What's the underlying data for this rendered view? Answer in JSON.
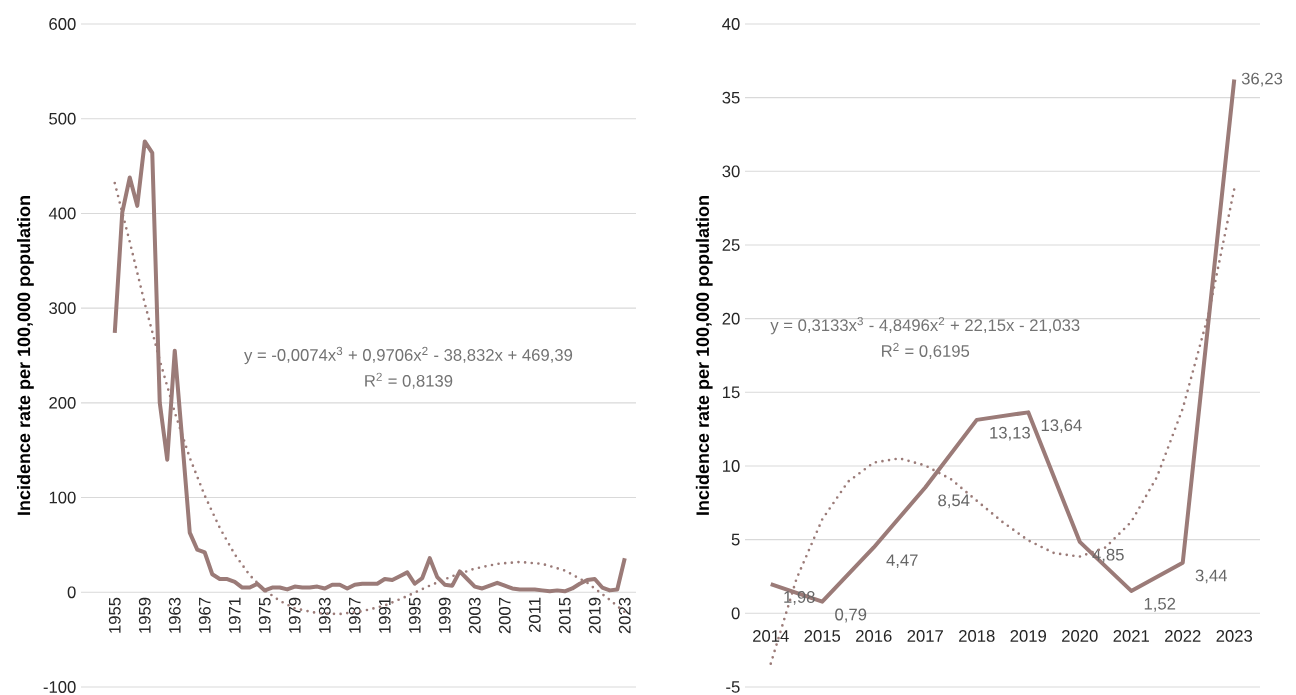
{
  "chart_data": [
    {
      "type": "line",
      "ylabel": "Incidence rate per 100,000 population",
      "x": [
        1955,
        1956,
        1957,
        1958,
        1959,
        1960,
        1961,
        1962,
        1963,
        1964,
        1965,
        1966,
        1967,
        1968,
        1969,
        1970,
        1971,
        1972,
        1973,
        1974,
        1975,
        1976,
        1977,
        1978,
        1979,
        1980,
        1981,
        1982,
        1983,
        1984,
        1985,
        1986,
        1987,
        1988,
        1989,
        1990,
        1991,
        1992,
        1993,
        1994,
        1995,
        1996,
        1997,
        1998,
        1999,
        2000,
        2001,
        2002,
        2003,
        2004,
        2005,
        2006,
        2007,
        2008,
        2009,
        2010,
        2011,
        2012,
        2013,
        2014,
        2015,
        2016,
        2017,
        2018,
        2019,
        2020,
        2021,
        2022,
        2023
      ],
      "series": [
        {
          "color": "#9b7b78",
          "values": [
            274,
            401,
            438,
            408,
            476,
            464,
            200,
            140,
            255,
            160,
            63,
            45,
            42,
            19,
            14,
            14,
            11,
            5,
            5,
            9,
            2,
            5,
            5,
            3,
            6,
            5,
            5,
            6,
            4,
            8,
            8,
            4,
            8,
            9,
            9,
            9,
            14,
            13,
            17,
            21,
            9,
            15,
            36,
            16,
            8,
            7,
            22,
            14,
            6,
            4,
            7,
            10,
            7,
            4,
            3,
            3,
            3,
            2,
            1,
            2,
            1,
            4,
            9,
            13,
            14,
            5,
            2,
            3,
            36
          ]
        },
        {
          "type": "line",
          "line_style": "dotted",
          "color": "#9b7b78",
          "x": [
            1955,
            1957,
            1959,
            1961,
            1963,
            1965,
            1967,
            1969,
            1971,
            1973,
            1975,
            1977,
            1979,
            1982,
            1985,
            1988,
            1991,
            1994,
            1997,
            2000,
            2003,
            2006,
            2009,
            2012,
            2015,
            2018,
            2021,
            2023
          ],
          "values": [
            432,
            370,
            305,
            245,
            190,
            142,
            102,
            68,
            40,
            18,
            2,
            -9,
            -17,
            -22,
            -23,
            -20,
            -14,
            -4,
            7,
            17,
            25,
            30,
            32,
            30,
            23,
            10,
            -8,
            -21
          ]
        }
      ],
      "xlim": [
        1950.5,
        2024.5
      ],
      "xticks": [
        1955,
        1959,
        1963,
        1967,
        1971,
        1975,
        1979,
        1983,
        1987,
        1991,
        1995,
        1999,
        2003,
        2007,
        2011,
        2015,
        2019,
        2023
      ],
      "ylim": [
        -100,
        600
      ],
      "yticks": [
        -100,
        0,
        100,
        200,
        300,
        400,
        500,
        600
      ],
      "grid": "y",
      "annotations": [
        "y = -0,0074x$^{3}$ + 0,9706x$^{2}$ - 38,832x + 469,39",
        "R$^{2}$ = 0,8139"
      ]
    },
    {
      "type": "line",
      "ylabel": "Incidence rate per 100,000 population",
      "x": [
        2014,
        2015,
        2016,
        2017,
        2018,
        2019,
        2020,
        2021,
        2022,
        2023
      ],
      "series": [
        {
          "color": "#9b7b78",
          "values": [
            1.98,
            0.79,
            4.47,
            8.54,
            13.13,
            13.64,
            4.85,
            1.52,
            3.44,
            36.23
          ],
          "value_labels": [
            "1,98",
            "0,79",
            "4,47",
            "8,54",
            "13,13",
            "13,64",
            "4,85",
            "1,52",
            "3,44",
            "36,23"
          ]
        },
        {
          "type": "line",
          "line_style": "dotted",
          "color": "#9b7b78",
          "x": [
            2014,
            2014.5,
            2015,
            2015.5,
            2016,
            2016.5,
            2017,
            2017.5,
            2018,
            2018.5,
            2019,
            2019.5,
            2020,
            2020.5,
            2021,
            2021.5,
            2022,
            2022.5,
            2023
          ],
          "values": [
            -3.42,
            2.34,
            6.38,
            8.93,
            10.23,
            10.52,
            10.03,
            9.1,
            7.64,
            6.2,
            4.95,
            4.09,
            3.85,
            4.47,
            6.21,
            9.26,
            13.9,
            20.3,
            28.8
          ]
        }
      ],
      "xlim": [
        2013.5,
        2023.5
      ],
      "xticks": [
        2014,
        2015,
        2016,
        2017,
        2018,
        2019,
        2020,
        2021,
        2022,
        2023
      ],
      "ylim": [
        -5,
        40
      ],
      "yticks": [
        -5,
        0,
        5,
        10,
        15,
        20,
        25,
        30,
        35,
        40
      ],
      "grid": "y",
      "annotations": [
        "y = 0,3133x$^{3}$ - 4,8496x$^{2}$ + 22,15x - 21,033",
        "R$^{2}$ = 0,6195"
      ]
    }
  ]
}
